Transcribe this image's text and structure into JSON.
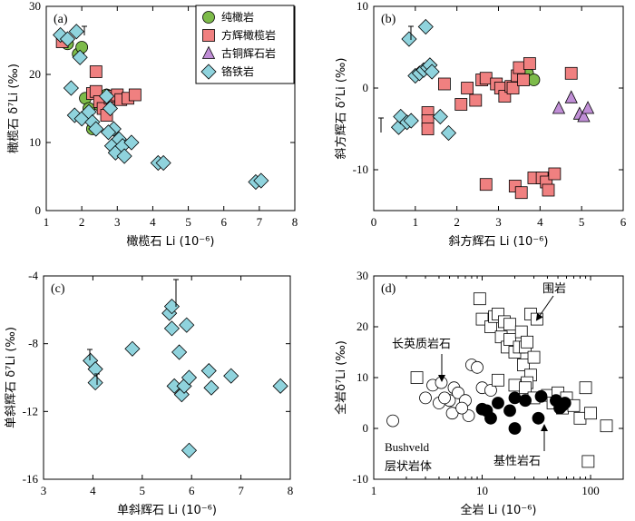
{
  "chart_data": [
    {
      "id": "a",
      "type": "scatter",
      "panel_label": "(a)",
      "xlabel": "橄榄石 Li (10⁻⁶)",
      "ylabel": "橄榄石 δ⁷Li (‰)",
      "xlim": [
        1,
        8
      ],
      "ylim": [
        0,
        30
      ],
      "xticks": [
        1,
        2,
        3,
        4,
        5,
        6,
        7,
        8
      ],
      "yticks": [
        0,
        10,
        20,
        30
      ],
      "legend": {
        "position": "top-right",
        "entries": [
          {
            "label": "纯橄岩",
            "marker": "circle",
            "color": "#7dbb4a"
          },
          {
            "label": "方辉橄榄岩",
            "marker": "square",
            "color": "#f08080"
          },
          {
            "label": "古铜辉石岩",
            "marker": "triangle",
            "color": "#c08ed6"
          },
          {
            "label": "铬铁岩",
            "marker": "diamond",
            "color": "#8fd3dd"
          }
        ]
      },
      "series": [
        {
          "name": "纯橄岩",
          "marker": "circle",
          "color": "#7dbb4a",
          "points": [
            [
              1.6,
              24.5
            ],
            [
              1.9,
              23
            ],
            [
              2.0,
              24
            ],
            [
              2.1,
              16.5
            ],
            [
              2.2,
              15
            ],
            [
              2.3,
              12
            ],
            [
              2.5,
              15.5
            ],
            [
              2.7,
              17
            ]
          ]
        },
        {
          "name": "方辉橄榄岩",
          "marker": "square",
          "color": "#f08080",
          "points": [
            [
              1.45,
              24.8
            ],
            [
              2.3,
              17.2
            ],
            [
              2.4,
              20.4
            ],
            [
              2.4,
              17.5
            ],
            [
              2.5,
              16
            ],
            [
              2.6,
              15
            ],
            [
              2.7,
              14
            ],
            [
              2.8,
              16.5
            ],
            [
              2.9,
              16.8
            ],
            [
              3.0,
              17
            ],
            [
              3.1,
              16.3
            ],
            [
              3.3,
              16.5
            ],
            [
              3.5,
              17
            ]
          ]
        },
        {
          "name": "铬铁岩",
          "marker": "diamond",
          "color": "#8fd3dd",
          "points": [
            [
              1.4,
              25.8
            ],
            [
              1.6,
              25.2
            ],
            [
              1.85,
              26.3
            ],
            [
              1.95,
              22.5
            ],
            [
              1.7,
              18
            ],
            [
              1.8,
              14
            ],
            [
              2.0,
              13.5
            ],
            [
              2.2,
              14.5
            ],
            [
              2.3,
              13
            ],
            [
              2.4,
              12
            ],
            [
              2.7,
              16.8
            ],
            [
              2.8,
              15
            ],
            [
              2.9,
              12
            ],
            [
              2.75,
              11.5
            ],
            [
              2.85,
              9.5
            ],
            [
              2.95,
              8.5
            ],
            [
              3.05,
              10.5
            ],
            [
              3.15,
              9.5
            ],
            [
              3.2,
              8
            ],
            [
              3.4,
              10
            ],
            [
              4.15,
              7
            ],
            [
              4.3,
              7
            ],
            [
              6.9,
              4.2
            ],
            [
              7.05,
              4.4
            ]
          ]
        }
      ]
    },
    {
      "id": "b",
      "type": "scatter",
      "panel_label": "(b)",
      "xlabel": "斜方辉石 Li (10⁻⁶)",
      "ylabel": "斜方辉石 δ⁷Li (‰)",
      "xlim": [
        0,
        6
      ],
      "ylim": [
        -15,
        10
      ],
      "xticks": [
        0,
        1,
        2,
        3,
        4,
        5,
        6
      ],
      "yticks": [
        -10,
        0,
        10
      ],
      "series": [
        {
          "name": "纯橄岩",
          "marker": "circle",
          "color": "#7dbb4a",
          "points": [
            [
              3.7,
              1.8
            ],
            [
              3.85,
              1.0
            ]
          ]
        },
        {
          "name": "方辉橄榄岩",
          "marker": "square",
          "color": "#f08080",
          "points": [
            [
              1.3,
              -3
            ],
            [
              1.3,
              -4
            ],
            [
              1.3,
              -5
            ],
            [
              1.7,
              0.5
            ],
            [
              2.1,
              -2
            ],
            [
              2.25,
              0
            ],
            [
              2.45,
              -1.5
            ],
            [
              2.6,
              1.0
            ],
            [
              2.7,
              1.2
            ],
            [
              2.95,
              0.5
            ],
            [
              3.05,
              0
            ],
            [
              3.15,
              -1.0
            ],
            [
              3.3,
              0.2
            ],
            [
              3.35,
              0
            ],
            [
              3.45,
              1.5
            ],
            [
              3.5,
              2.5
            ],
            [
              3.6,
              1.0
            ],
            [
              3.75,
              3.0
            ],
            [
              2.7,
              -11.8
            ],
            [
              3.4,
              -12
            ],
            [
              3.55,
              -12.8
            ],
            [
              3.85,
              -11
            ],
            [
              4.05,
              -11
            ],
            [
              4.15,
              -11.5
            ],
            [
              4.2,
              -12.5
            ],
            [
              4.35,
              -10.5
            ],
            [
              4.75,
              1.8
            ]
          ]
        },
        {
          "name": "古铜辉石岩",
          "marker": "triangle",
          "color": "#c08ed6",
          "points": [
            [
              4.45,
              -2.5
            ],
            [
              4.75,
              -1.2
            ],
            [
              4.95,
              -3.2
            ],
            [
              5.05,
              -3.5
            ],
            [
              5.15,
              -2.5
            ]
          ]
        },
        {
          "name": "铬铁岩",
          "marker": "diamond",
          "color": "#8fd3dd",
          "points": [
            [
              0.6,
              -4.8
            ],
            [
              0.65,
              -3.5
            ],
            [
              0.8,
              -4.2
            ],
            [
              0.9,
              -4.0
            ],
            [
              0.85,
              6.0
            ],
            [
              1.0,
              1.5
            ],
            [
              1.1,
              1.8
            ],
            [
              1.2,
              2.2
            ],
            [
              1.25,
              7.5
            ],
            [
              1.3,
              2.5
            ],
            [
              1.35,
              2.8
            ],
            [
              1.4,
              2.0
            ],
            [
              1.6,
              -3.5
            ],
            [
              1.8,
              -5.5
            ]
          ]
        }
      ]
    },
    {
      "id": "c",
      "type": "scatter",
      "panel_label": "(c)",
      "xlabel": "单斜辉石 Li (10⁻⁶)",
      "ylabel": "单斜辉石 δ⁷Li (‰)",
      "xlim": [
        3,
        8
      ],
      "ylim": [
        -16,
        -4
      ],
      "xticks": [
        3,
        4,
        5,
        6,
        7,
        8
      ],
      "yticks": [
        -16,
        -12,
        -8,
        -4
      ],
      "series": [
        {
          "name": "铬铁岩",
          "marker": "diamond",
          "color": "#8fd3dd",
          "points": [
            [
              3.95,
              -9.0
            ],
            [
              4.05,
              -9.5
            ],
            [
              4.05,
              -10.3
            ],
            [
              4.8,
              -8.3
            ],
            [
              5.55,
              -6.2
            ],
            [
              5.6,
              -5.8
            ],
            [
              5.6,
              -7.1
            ],
            [
              5.65,
              -10.5
            ],
            [
              5.75,
              -8.5
            ],
            [
              5.8,
              -11
            ],
            [
              5.85,
              -10.5
            ],
            [
              5.9,
              -6.9
            ],
            [
              5.95,
              -10
            ],
            [
              5.95,
              -14.3
            ],
            [
              6.35,
              -9.6
            ],
            [
              6.4,
              -10.6
            ],
            [
              6.8,
              -9.9
            ],
            [
              7.8,
              -10.5
            ]
          ]
        }
      ]
    },
    {
      "id": "d",
      "type": "scatter",
      "panel_label": "(d)",
      "xlabel": "全岩 Li (10⁻⁶)",
      "ylabel": "全岩δ⁷Li (‰)",
      "xscale": "log",
      "xlim": [
        1,
        200
      ],
      "ylim": [
        -10,
        30
      ],
      "xticks": [
        1,
        10,
        100
      ],
      "yticks": [
        -10,
        0,
        10,
        20,
        30
      ],
      "annotations": [
        {
          "text": "围岩"
        },
        {
          "text": "长英质岩石"
        },
        {
          "text": "基性岩石"
        },
        {
          "text": "Bushveld"
        },
        {
          "text": "层状岩体"
        }
      ],
      "series": [
        {
          "name": "长英质岩石",
          "marker": "open-circle",
          "color": "#ffffff",
          "points": [
            [
              1.5,
              1.5
            ],
            [
              3.0,
              6
            ],
            [
              3.5,
              8.5
            ],
            [
              4.0,
              5
            ],
            [
              4.2,
              9
            ],
            [
              5,
              5.5
            ],
            [
              5.3,
              3
            ],
            [
              5.5,
              8
            ],
            [
              6,
              7
            ],
            [
              7,
              5.5
            ],
            [
              7.5,
              2.5
            ],
            [
              8,
              12.5
            ],
            [
              9,
              12
            ],
            [
              10,
              8
            ],
            [
              12,
              7.5
            ],
            [
              4.5,
              6
            ],
            [
              6.5,
              4
            ]
          ]
        },
        {
          "name": "围岩",
          "marker": "open-square",
          "color": "#ffffff",
          "points": [
            [
              2.5,
              10
            ],
            [
              9.5,
              25.5
            ],
            [
              10,
              21.5
            ],
            [
              12,
              20
            ],
            [
              13,
              22
            ],
            [
              14,
              22.5
            ],
            [
              15,
              18
            ],
            [
              16,
              21
            ],
            [
              17,
              16
            ],
            [
              18,
              17.5
            ],
            [
              18,
              20.5
            ],
            [
              20,
              15
            ],
            [
              22,
              16
            ],
            [
              23,
              19
            ],
            [
              24,
              12.5
            ],
            [
              25,
              16
            ],
            [
              26,
              17
            ],
            [
              28,
              22.5
            ],
            [
              30,
              14
            ],
            [
              32,
              21.5
            ],
            [
              28,
              10.5
            ],
            [
              26,
              9
            ],
            [
              14,
              9.5
            ],
            [
              20,
              8.5
            ],
            [
              25,
              8
            ],
            [
              30,
              6
            ],
            [
              40,
              6.5
            ],
            [
              45,
              5
            ],
            [
              50,
              7
            ],
            [
              55,
              4
            ],
            [
              60,
              6
            ],
            [
              70,
              4.5
            ],
            [
              80,
              2
            ],
            [
              90,
              8
            ],
            [
              100,
              3
            ],
            [
              140,
              0.5
            ],
            [
              95,
              -6.5
            ]
          ]
        },
        {
          "name": "基性岩石",
          "marker": "filled-circle",
          "color": "#000000",
          "points": [
            [
              10,
              3.8
            ],
            [
              11,
              3.5
            ],
            [
              12,
              2
            ],
            [
              14,
              5
            ],
            [
              18,
              3.5
            ],
            [
              20,
              6
            ],
            [
              20,
              0
            ],
            [
              25,
              5.5
            ],
            [
              33,
              2
            ],
            [
              35,
              6.3
            ],
            [
              48,
              5.5
            ],
            [
              52,
              4
            ],
            [
              55,
              4.5
            ],
            [
              58,
              5
            ]
          ]
        }
      ]
    }
  ]
}
